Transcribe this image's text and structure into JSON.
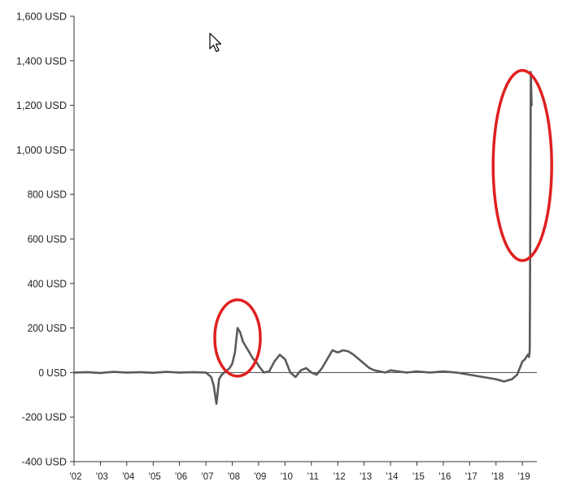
{
  "chart_data": {
    "type": "line",
    "title": "",
    "xlabel": "",
    "ylabel": "",
    "ylim": [
      -400,
      1600
    ],
    "yticks": [
      {
        "value": 1600,
        "label": "1,600 USD"
      },
      {
        "value": 1400,
        "label": "1,400 USD"
      },
      {
        "value": 1200,
        "label": "1,200 USD"
      },
      {
        "value": 1000,
        "label": "1,000 USD"
      },
      {
        "value": 800,
        "label": "800 USD"
      },
      {
        "value": 600,
        "label": "600 USD"
      },
      {
        "value": 400,
        "label": "400 USD"
      },
      {
        "value": 200,
        "label": "200 USD"
      },
      {
        "value": 0,
        "label": "0 USD"
      },
      {
        "value": -200,
        "label": "-200 USD"
      },
      {
        "value": -400,
        "label": "-400 USD"
      }
    ],
    "xlim": [
      2002.0,
      2019.55
    ],
    "xticks": [
      {
        "value": 2002,
        "label": "'02"
      },
      {
        "value": 2003,
        "label": "'03"
      },
      {
        "value": 2004,
        "label": "'04"
      },
      {
        "value": 2005,
        "label": "'05"
      },
      {
        "value": 2006,
        "label": "'06"
      },
      {
        "value": 2007,
        "label": "'07"
      },
      {
        "value": 2008,
        "label": "'08"
      },
      {
        "value": 2009,
        "label": "'09"
      },
      {
        "value": 2010,
        "label": "'10"
      },
      {
        "value": 2011,
        "label": "'11"
      },
      {
        "value": 2012,
        "label": "'12"
      },
      {
        "value": 2013,
        "label": "'13"
      },
      {
        "value": 2014,
        "label": "'14"
      },
      {
        "value": 2015,
        "label": "'15"
      },
      {
        "value": 2016,
        "label": "'16"
      },
      {
        "value": 2017,
        "label": "'17"
      },
      {
        "value": 2018,
        "label": "'18"
      },
      {
        "value": 2019,
        "label": "'19"
      }
    ],
    "grid": false,
    "zero_line": true,
    "series": [
      {
        "name": "",
        "color": "#5a5a5a",
        "x": [
          2002.0,
          2002.5,
          2003.0,
          2003.5,
          2004.0,
          2004.5,
          2005.0,
          2005.5,
          2006.0,
          2006.5,
          2007.0,
          2007.2,
          2007.3,
          2007.4,
          2007.5,
          2007.6,
          2007.7,
          2007.8,
          2007.9,
          2008.0,
          2008.1,
          2008.2,
          2008.3,
          2008.4,
          2008.5,
          2008.6,
          2008.7,
          2008.8,
          2008.9,
          2009.0,
          2009.2,
          2009.4,
          2009.6,
          2009.8,
          2010.0,
          2010.2,
          2010.4,
          2010.6,
          2010.8,
          2011.0,
          2011.2,
          2011.4,
          2011.6,
          2011.8,
          2012.0,
          2012.2,
          2012.4,
          2012.6,
          2012.8,
          2013.0,
          2013.2,
          2013.4,
          2013.6,
          2013.8,
          2014.0,
          2014.3,
          2014.6,
          2015.0,
          2015.5,
          2016.0,
          2016.5,
          2017.0,
          2017.5,
          2018.0,
          2018.3,
          2018.6,
          2018.8,
          2019.0,
          2019.1,
          2019.2,
          2019.25,
          2019.28,
          2019.3,
          2019.32,
          2019.35
        ],
        "values": [
          0,
          2,
          -2,
          3,
          0,
          2,
          -1,
          3,
          0,
          2,
          0,
          -20,
          -60,
          -140,
          -30,
          -10,
          0,
          10,
          20,
          40,
          90,
          200,
          180,
          140,
          120,
          100,
          80,
          60,
          50,
          30,
          0,
          5,
          50,
          80,
          60,
          0,
          -20,
          10,
          20,
          0,
          -10,
          20,
          60,
          100,
          90,
          100,
          95,
          80,
          60,
          40,
          20,
          10,
          5,
          0,
          10,
          5,
          0,
          5,
          0,
          5,
          0,
          -10,
          -20,
          -30,
          -40,
          -30,
          -10,
          50,
          60,
          80,
          70,
          100,
          700,
          1350,
          1200
        ]
      }
    ],
    "annotations": [
      {
        "shape": "ellipse",
        "color": "#e02020",
        "around": {
          "x": 2008.2,
          "y": 155
        }
      },
      {
        "shape": "ellipse",
        "color": "#e02020",
        "around": {
          "x": 2019.0,
          "y": 930
        }
      }
    ]
  }
}
